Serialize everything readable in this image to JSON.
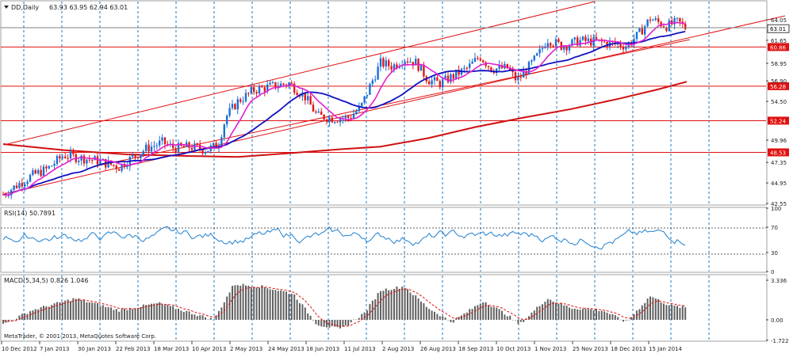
{
  "main": {
    "header": {
      "symbol_label": "DD,Daily",
      "ohlc": "63.93 63.95 62.94 63.01"
    },
    "price_axis": [
      {
        "label": "64.05",
        "value": 64.05
      },
      {
        "label": "61.65",
        "value": 61.65
      },
      {
        "label": "58.95",
        "value": 58.95
      },
      {
        "label": "56.90",
        "value": 56.9
      },
      {
        "label": "54.50",
        "value": 54.5
      },
      {
        "label": "49.96",
        "value": 49.96
      },
      {
        "label": "47.35",
        "value": 47.35
      },
      {
        "label": "44.95",
        "value": 44.95
      },
      {
        "label": "42.55",
        "value": 42.55
      }
    ],
    "current_price": {
      "label": "63.01",
      "value": 63.01
    },
    "levels": [
      {
        "label": "60.86",
        "value": 60.86
      },
      {
        "label": "56.28",
        "value": 56.28
      },
      {
        "label": "52.24",
        "value": 52.24
      },
      {
        "label": "48.53",
        "value": 48.53
      }
    ]
  },
  "rsi": {
    "label": "RSI(14) 50.7891",
    "axis": [
      {
        "label": "100",
        "value": 100
      },
      {
        "label": "70",
        "value": 70
      },
      {
        "label": "30",
        "value": 30
      },
      {
        "label": "0",
        "value": 0
      }
    ]
  },
  "macd": {
    "label": "MACD(5,34,5) 0.826 1.046",
    "axis": [
      {
        "label": "3.336",
        "value": 3.336
      },
      {
        "label": "0.00",
        "value": 0
      },
      {
        "label": "-1.722",
        "value": -1.722
      }
    ]
  },
  "time_axis": [
    "10 Dec 2012",
    "7 Jan 2013",
    "30 Jan 2013",
    "22 Feb 2013",
    "18 Mar 2013",
    "10 Apr 2013",
    "2 May 2013",
    "24 May 2013",
    "18 Jun 2013",
    "11 Jul 2013",
    "2 Aug 2013",
    "26 Aug 2013",
    "18 Sep 2013",
    "10 Oct 2013",
    "1 Nov 2013",
    "25 Nov 2013",
    "18 Dec 2013",
    "15 Jan 2014"
  ],
  "copyright": "MetaTrader, © 2001-2013, MetaQuotes Software Corp.",
  "colors": {
    "bull": "#1a6fd8",
    "bear": "#e01818",
    "ma_fast": "#e020d0",
    "ma_mid": "#1010c0",
    "ma_slow": "#d01010",
    "level": "#e01010",
    "grid": "#1a78c2",
    "rsi_line": "#1e7fd0",
    "macd_signal": "#e01010"
  }
}
